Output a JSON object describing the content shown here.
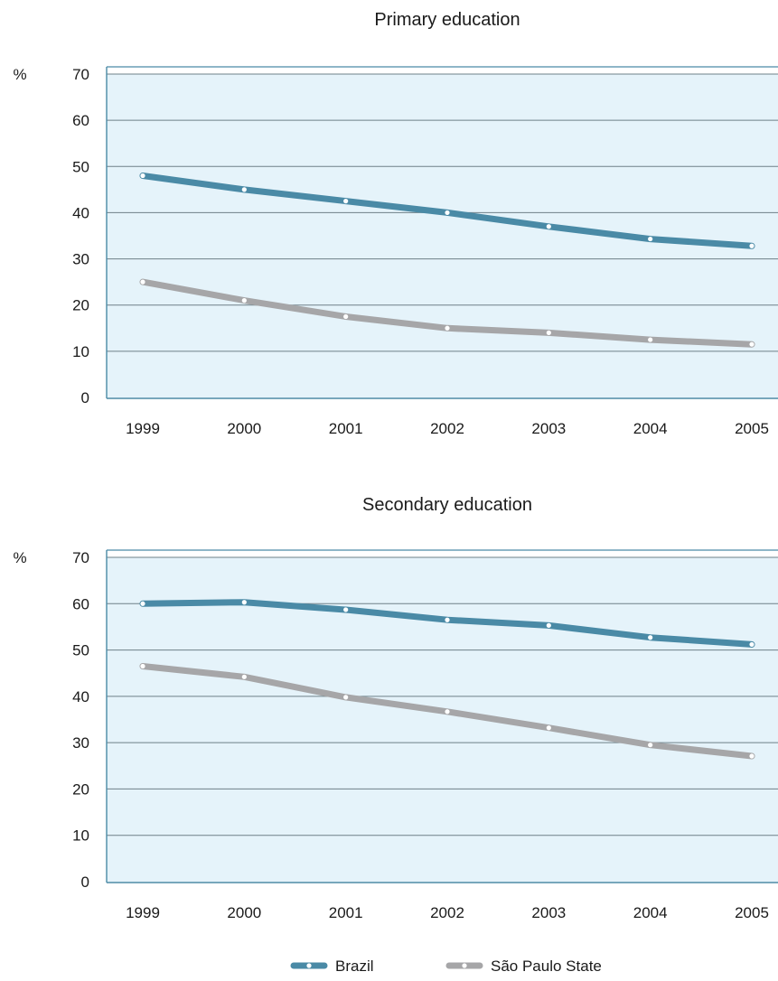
{
  "legend": {
    "position": "bottom-center",
    "items": [
      {
        "name": "Brazil",
        "color": "#4a8aa6"
      },
      {
        "name": "São Paulo State",
        "color": "#a6a6a8"
      }
    ]
  },
  "colors": {
    "plot_background": "#e5f3fa",
    "axis_frame": "#4a8aa6",
    "gridline": "#6e8088",
    "marker_fill": "#ffffff"
  },
  "chart_data": [
    {
      "type": "line",
      "title": "Primary education",
      "ylabel": "%",
      "xlabel": "",
      "x": [
        "1999",
        "2000",
        "2001",
        "2002",
        "2003",
        "2004",
        "2005"
      ],
      "ylim": [
        0,
        70
      ],
      "yticks": [
        0,
        10,
        20,
        30,
        40,
        50,
        60,
        70
      ],
      "grid": true,
      "series": [
        {
          "name": "Brazil",
          "values": [
            48,
            45,
            42.5,
            40,
            37,
            34.3,
            32.8
          ]
        },
        {
          "name": "São Paulo State",
          "values": [
            25,
            21,
            17.5,
            15,
            14,
            12.5,
            11.5
          ]
        }
      ]
    },
    {
      "type": "line",
      "title": "Secondary education",
      "ylabel": "%",
      "xlabel": "",
      "x": [
        "1999",
        "2000",
        "2001",
        "2002",
        "2003",
        "2004",
        "2005"
      ],
      "ylim": [
        0,
        70
      ],
      "yticks": [
        0,
        10,
        20,
        30,
        40,
        50,
        60,
        70
      ],
      "grid": true,
      "series": [
        {
          "name": "Brazil",
          "values": [
            60,
            60.3,
            58.7,
            56.5,
            55.3,
            52.7,
            51.2
          ]
        },
        {
          "name": "São Paulo State",
          "values": [
            46.5,
            44.2,
            39.8,
            36.7,
            33.2,
            29.5,
            27.1
          ]
        }
      ]
    }
  ]
}
